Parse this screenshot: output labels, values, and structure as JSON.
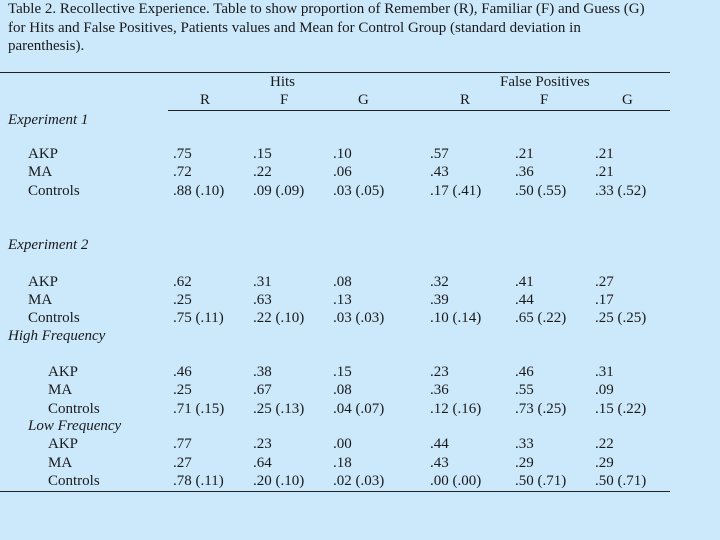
{
  "caption": "Table 2. Recollective Experience. Table to show proportion of Remember (R), Familiar (F) and Guess (G) for Hits and False Positives, Patients values and Mean for Control Group (standard deviation in parenthesis).",
  "headers": {
    "groups": [
      "Hits",
      "False Positives"
    ],
    "columns": [
      "R",
      "F",
      "G",
      "R",
      "F",
      "G"
    ]
  },
  "sections": [
    {
      "title": "Experiment 1",
      "rows": [
        {
          "label": "AKP",
          "values": [
            ".75",
            ".15",
            ".10",
            ".57",
            ".21",
            ".21"
          ]
        },
        {
          "label": "MA",
          "values": [
            ".72",
            ".22",
            ".06",
            ".43",
            ".36",
            ".21"
          ]
        },
        {
          "label": "Controls",
          "values": [
            ".88 (.10)",
            ".09 (.09)",
            ".03 (.05)",
            ".17 (.41)",
            ".50 (.55)",
            ".33 (.52)"
          ]
        }
      ]
    },
    {
      "title": "Experiment 2",
      "rows": [
        {
          "label": "AKP",
          "values": [
            ".62",
            ".31",
            ".08",
            ".32",
            ".41",
            ".27"
          ]
        },
        {
          "label": "MA",
          "values": [
            ".25",
            ".63",
            ".13",
            ".39",
            ".44",
            ".17"
          ]
        },
        {
          "label": "Controls",
          "values": [
            ".75 (.11)",
            ".22 (.10)",
            ".03 (.03)",
            ".10 (.14)",
            ".65 (.22)",
            ".25 (.25)"
          ]
        }
      ]
    },
    {
      "title": "High Frequency",
      "rows": [
        {
          "label": "AKP",
          "values": [
            ".46",
            ".38",
            ".15",
            ".23",
            ".46",
            ".31"
          ]
        },
        {
          "label": "MA",
          "values": [
            ".25",
            ".67",
            ".08",
            ".36",
            ".55",
            ".09"
          ]
        },
        {
          "label": "Controls",
          "values": [
            ".71 (.15)",
            ".25 (.13)",
            ".04 (.07)",
            ".12 (.16)",
            ".73 (.25)",
            ".15 (.22)"
          ]
        }
      ]
    },
    {
      "title": "Low Frequency",
      "rows": [
        {
          "label": "AKP",
          "values": [
            ".77",
            ".23",
            ".00",
            ".44",
            ".33",
            ".22"
          ]
        },
        {
          "label": "MA",
          "values": [
            ".27",
            ".64",
            ".18",
            ".43",
            ".29",
            ".29"
          ]
        },
        {
          "label": "Controls",
          "values": [
            ".78 (.11)",
            ".20 (.10)",
            ".02 (.03)",
            ".00 (.00)",
            ".50 (.71)",
            ".50 (.71)"
          ]
        }
      ]
    }
  ]
}
